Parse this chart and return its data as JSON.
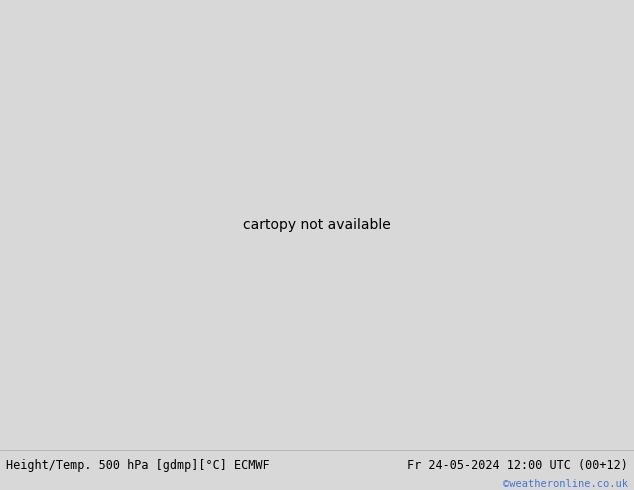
{
  "title_left": "Height/Temp. 500 hPa [gdmp][°C] ECMWF",
  "title_right": "Fr 24-05-2024 12:00 UTC (00+12)",
  "credit": "©weatheronline.co.uk",
  "background_ocean": "#d8d8d8",
  "land_color": "#c8f0a8",
  "border_color": "#888888",
  "bottom_bar_color": "#f0f0f0",
  "title_font_size": 8.5,
  "credit_color": "#4477cc",
  "fig_width": 6.34,
  "fig_height": 4.9,
  "dpi": 100,
  "extent": [
    -105,
    20,
    -62,
    17
  ],
  "contour_black": "#000000",
  "contour_red": "#cc2200",
  "contour_orange": "#ee8800",
  "contour_yg": "#88bb00",
  "contour_cyan": "#00bbcc",
  "contour_blue": "#4477ff",
  "contour_dkblue": "#0000cc"
}
